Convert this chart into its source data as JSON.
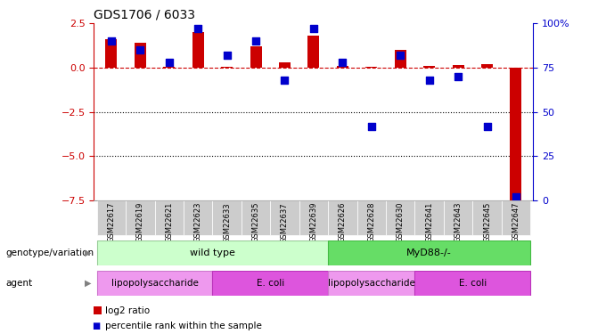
{
  "title": "GDS1706 / 6033",
  "samples": [
    "GSM22617",
    "GSM22619",
    "GSM22621",
    "GSM22623",
    "GSM22633",
    "GSM22635",
    "GSM22637",
    "GSM22639",
    "GSM22626",
    "GSM22628",
    "GSM22630",
    "GSM22641",
    "GSM22643",
    "GSM22645",
    "GSM22647"
  ],
  "log2_ratio": [
    1.6,
    1.4,
    0.05,
    2.0,
    0.05,
    1.2,
    0.3,
    1.8,
    0.1,
    0.05,
    1.0,
    0.1,
    0.15,
    0.2,
    -7.5
  ],
  "percentile": [
    90,
    85,
    78,
    97,
    82,
    90,
    68,
    97,
    78,
    42,
    82,
    68,
    70,
    42,
    2
  ],
  "ylim_left": [
    -7.5,
    2.5
  ],
  "ylim_right": [
    0,
    100
  ],
  "left_yticks": [
    -7.5,
    -5.0,
    -2.5,
    0.0,
    2.5
  ],
  "right_yticks": [
    0,
    25,
    50,
    75,
    100
  ],
  "hlines": [
    -2.5,
    -5.0
  ],
  "dashed_hline": 0.0,
  "bar_color": "#cc0000",
  "dot_color": "#0000cc",
  "bar_width": 0.4,
  "dot_size": 30,
  "genotype_spans": [
    [
      0,
      7,
      "wild type",
      "#ccffcc",
      "#99cc99"
    ],
    [
      8,
      14,
      "MyD88-/-",
      "#66dd66",
      "#44bb44"
    ]
  ],
  "agent_spans": [
    [
      0,
      3,
      "lipopolysaccharide",
      "#ee99ee",
      "#cc77cc"
    ],
    [
      4,
      7,
      "E. coli",
      "#dd55dd",
      "#bb33bb"
    ],
    [
      8,
      10,
      "lipopolysaccharide",
      "#ee99ee",
      "#cc77cc"
    ],
    [
      11,
      14,
      "E. coli",
      "#dd55dd",
      "#bb33bb"
    ]
  ],
  "legend_items": [
    {
      "color": "#cc0000",
      "label": "log2 ratio"
    },
    {
      "color": "#0000cc",
      "label": "percentile rank within the sample"
    }
  ],
  "background_color": "#ffffff",
  "sample_box_color": "#cccccc",
  "row_label_genotype": "genotype/variation",
  "row_label_agent": "agent"
}
